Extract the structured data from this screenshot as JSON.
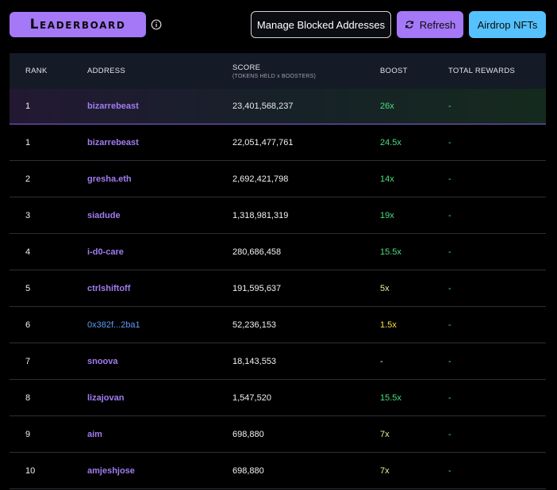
{
  "header": {
    "title": "Leaderboard",
    "manage_blocked_label": "Manage Blocked Addresses",
    "refresh_label": "Refresh",
    "airdrop_label": "Airdrop NFTs"
  },
  "table": {
    "columns": {
      "rank": "RANK",
      "address": "ADDRESS",
      "score": "SCORE",
      "score_sub": "(TOKENS HELD x BOOSTERS)",
      "boost": "BOOST",
      "total_rewards": "TOTAL REWARDS"
    },
    "rows": [
      {
        "rank": "1",
        "address": "bizarrebeast",
        "score": "23,401,568,237",
        "boost": "26x",
        "rewards": "-"
      },
      {
        "rank": "1",
        "address": "bizarrebeast",
        "score": "22,051,477,761",
        "boost": "24.5x",
        "rewards": "-"
      },
      {
        "rank": "2",
        "address": "gresha.eth",
        "score": "2,692,421,798",
        "boost": "14x",
        "rewards": "-"
      },
      {
        "rank": "3",
        "address": "siadude",
        "score": "1,318,981,319",
        "boost": "19x",
        "rewards": "-"
      },
      {
        "rank": "4",
        "address": "i-d0-care",
        "score": "280,686,458",
        "boost": "15.5x",
        "rewards": "-"
      },
      {
        "rank": "5",
        "address": "ctrlshiftoff",
        "score": "191,595,637",
        "boost": "5x",
        "rewards": "-"
      },
      {
        "rank": "6",
        "address": "0x382f...2ba1",
        "score": "52,236,153",
        "boost": "1.5x",
        "rewards": "-"
      },
      {
        "rank": "7",
        "address": "snoova",
        "score": "18,143,553",
        "boost": "-",
        "rewards": "-"
      },
      {
        "rank": "8",
        "address": "lizajovan",
        "score": "1,547,520",
        "boost": "15.5x",
        "rewards": "-"
      },
      {
        "rank": "9",
        "address": "aim",
        "score": "698,880",
        "boost": "7x",
        "rewards": "-"
      },
      {
        "rank": "10",
        "address": "amjeshjose",
        "score": "698,880",
        "boost": "7x",
        "rewards": "-"
      }
    ]
  },
  "colors": {
    "accent_purple": "#a478f6",
    "accent_blue": "#55c2ff",
    "boost_high": "#4ade80",
    "boost_low": "#fde047"
  },
  "icons": {
    "info": "info-icon",
    "refresh": "refresh-icon"
  }
}
